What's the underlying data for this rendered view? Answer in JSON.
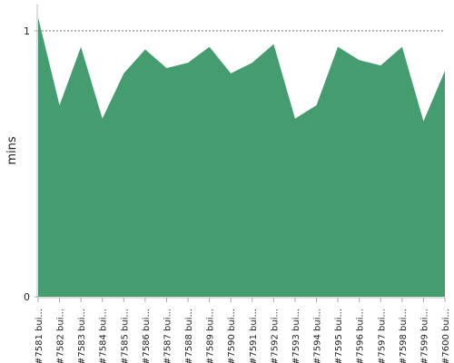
{
  "chart_data": {
    "type": "area",
    "y_label": "mins",
    "categories": [
      "#7581 bui...",
      "#7582 bui...",
      "#7583 bui...",
      "#7584 bui...",
      "#7585 bui...",
      "#7586 bui...",
      "#7587 bui...",
      "#7588 bui...",
      "#7589 bui...",
      "#7590 bui...",
      "#7591 bui...",
      "#7592 bui...",
      "#7593 bui...",
      "#7594 bui...",
      "#7595 bui...",
      "#7596 bui...",
      "#7597 bui...",
      "#7598 bui...",
      "#7599 bui...",
      "#7600 bui..."
    ],
    "values": [
      1.05,
      0.72,
      0.94,
      0.67,
      0.84,
      0.93,
      0.86,
      0.88,
      0.94,
      0.84,
      0.88,
      0.95,
      0.67,
      0.72,
      0.94,
      0.89,
      0.87,
      0.94,
      0.66,
      0.85
    ],
    "color": "#459c6e",
    "ylim": [
      0,
      1.1
    ],
    "yticks": [
      0,
      1
    ],
    "grid": true
  }
}
